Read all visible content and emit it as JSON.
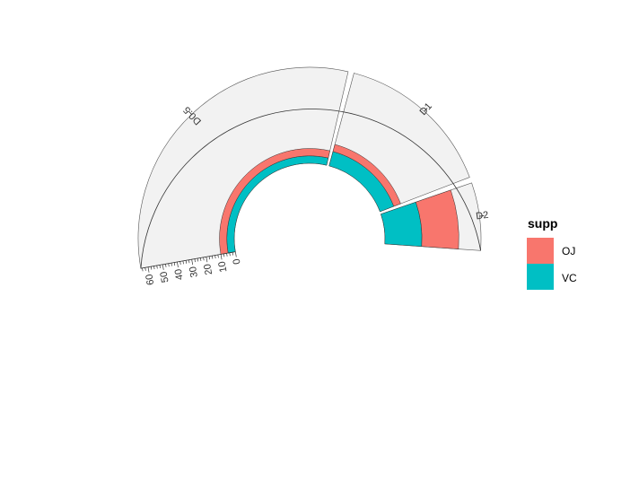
{
  "chart_data": {
    "type": "bar",
    "subtype": "stacked-radial-bar",
    "title": "",
    "xlabel": "",
    "ylabel": "",
    "categories": [
      "D0.5",
      "D1",
      "D2"
    ],
    "series": [
      {
        "name": "OJ",
        "values": [
          5,
          5,
          25
        ],
        "color": "#F8766D"
      },
      {
        "name": "VC",
        "values": [
          5,
          10,
          25
        ],
        "color": "#00BFC4"
      }
    ],
    "r_axis_ticks": [
      0,
      10,
      20,
      30,
      40,
      50,
      60
    ],
    "r_axis_minor_step": 2,
    "ylim": [
      0,
      65
    ],
    "panel_background": "#F2F2F2",
    "grid": false,
    "legend": {
      "title": "supp",
      "position": "right",
      "entries": [
        "OJ",
        "VC"
      ]
    }
  }
}
